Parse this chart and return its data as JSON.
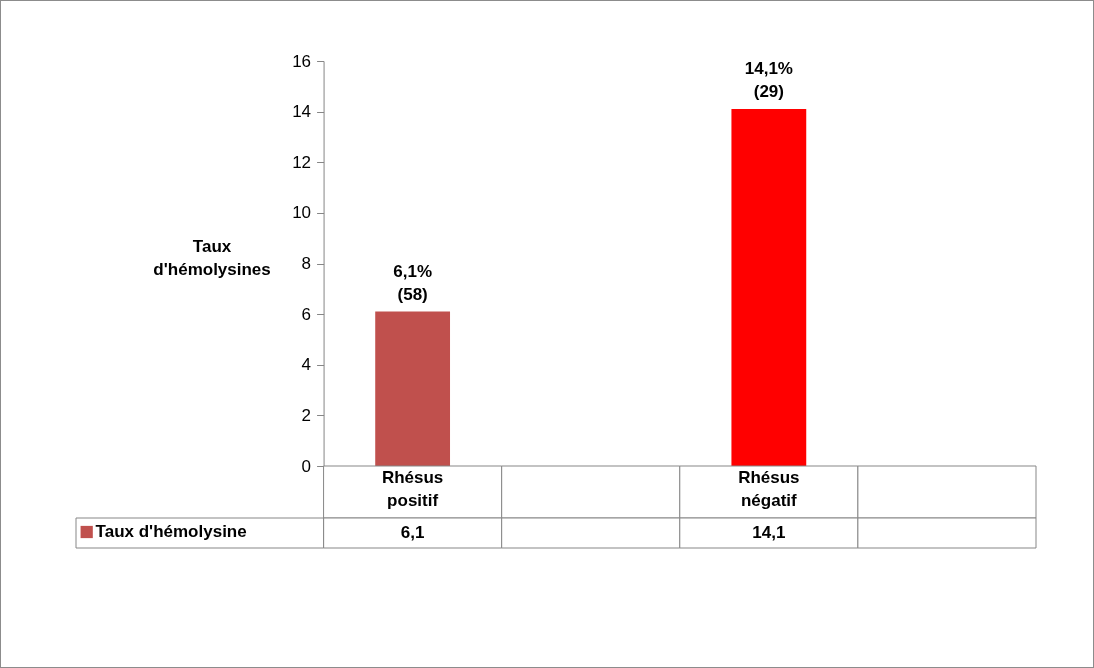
{
  "chart_data": {
    "type": "bar",
    "categories": [
      "Rhésus positif",
      null,
      "Rhésus négatif",
      null
    ],
    "series": [
      {
        "name": "Taux d'hémolysine",
        "color": "#c0504d",
        "colors": [
          "#c0504d",
          null,
          "#ff0000",
          null
        ],
        "values": [
          6.1,
          null,
          14.1,
          null
        ],
        "value_labels": [
          "6,1%\n(58)",
          null,
          "14,1%\n(29)",
          null
        ]
      }
    ],
    "ylabel": "Taux d'hémolysines",
    "ylim": [
      0,
      16
    ],
    "yticks": [
      0,
      2,
      4,
      6,
      8,
      10,
      12,
      14,
      16
    ],
    "grid": false,
    "annotations": [
      "6,1",
      "14,1"
    ]
  }
}
